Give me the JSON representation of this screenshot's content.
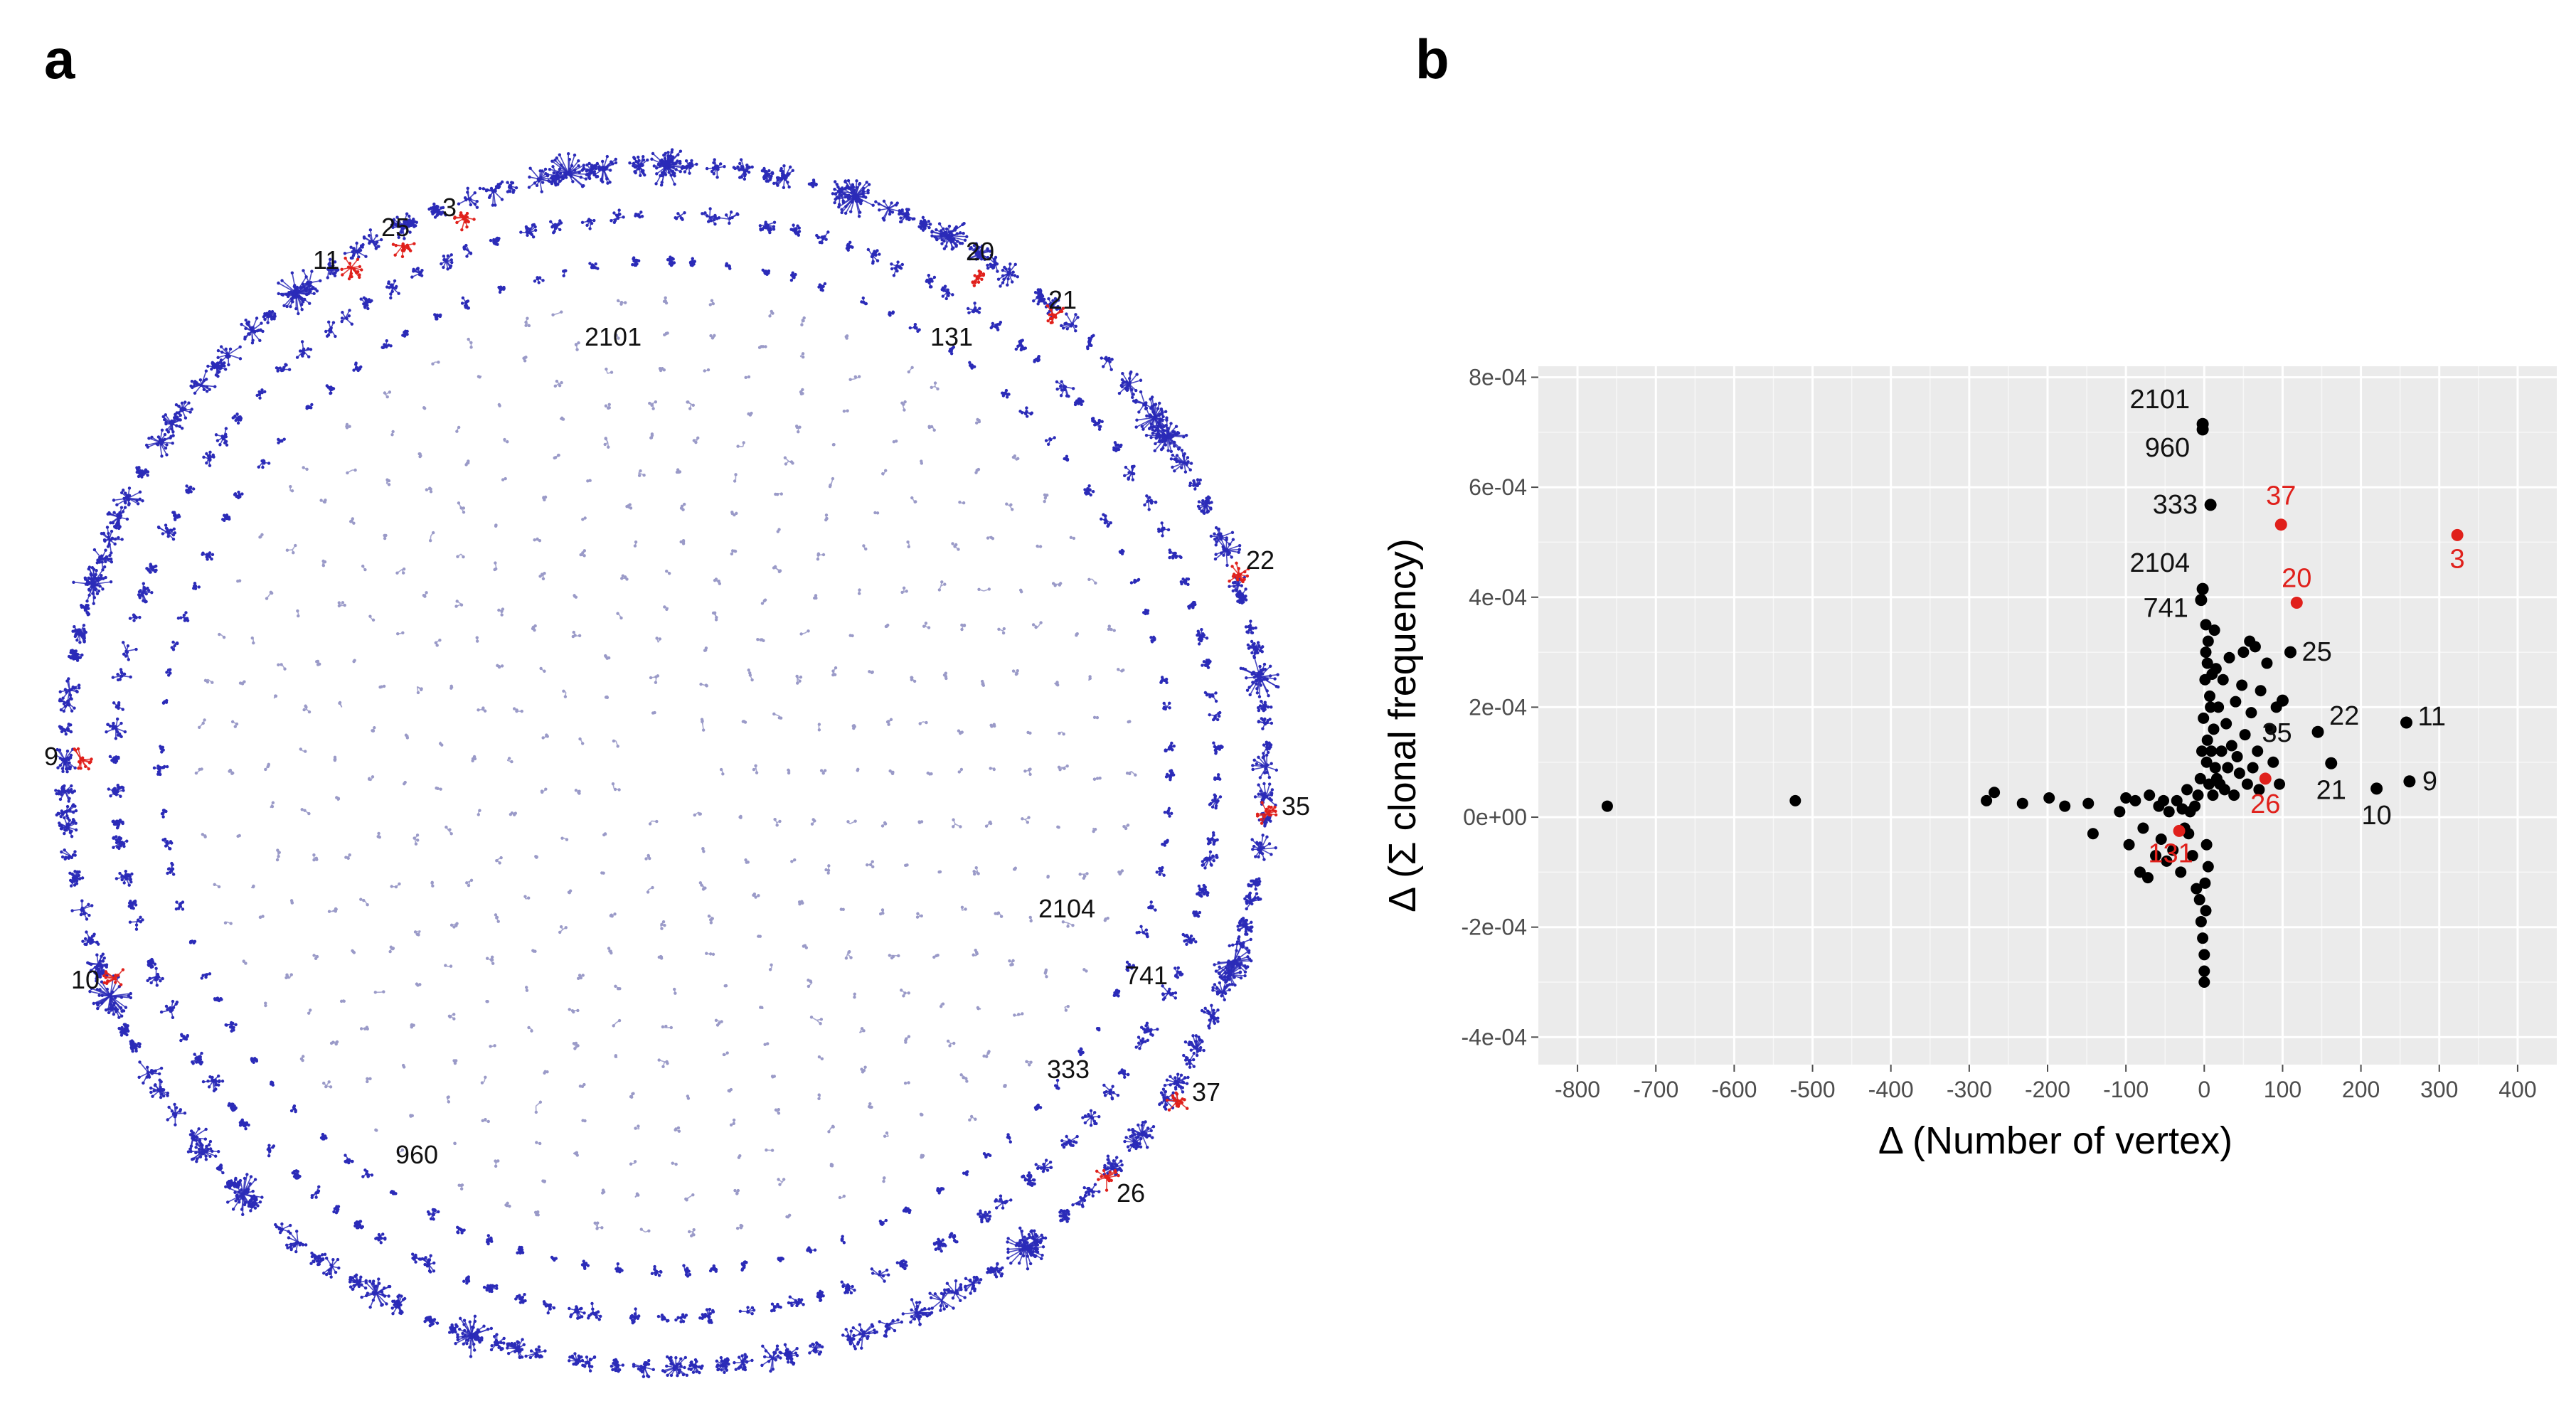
{
  "panels": {
    "a": "a",
    "b": "b"
  },
  "network": {
    "colors": {
      "cluster": "#2b2bb8",
      "highlight": "#e0201b",
      "faint": "#9a9ac8"
    },
    "outer_labels": [
      "3",
      "25",
      "11",
      "20",
      "21",
      "22",
      "9",
      "35",
      "10",
      "37",
      "26"
    ],
    "inner_labels": [
      "2101",
      "131",
      "2104",
      "741",
      "333",
      "960"
    ]
  },
  "chart_data": {
    "type": "scatter",
    "title": "",
    "xlabel": "Δ (Number of vertex)",
    "ylabel": "Δ (Σ clonal frequency)",
    "xlim": [
      -850,
      450
    ],
    "ylim": [
      -0.00045,
      0.00082
    ],
    "x_ticks": [
      -800,
      -700,
      -600,
      -500,
      -400,
      -300,
      -200,
      -100,
      0,
      100,
      200,
      300,
      400
    ],
    "x_tick_labels": [
      "-800",
      "-700",
      "-600",
      "-500",
      "-400",
      "-300",
      "-200",
      "-100",
      "0",
      "100",
      "200",
      "300",
      "400"
    ],
    "y_ticks": [
      -0.0004,
      -0.0002,
      0,
      0.0002,
      0.0004,
      0.0006,
      0.0008
    ],
    "y_tick_labels": [
      "-4e-04",
      "-2e-04",
      "0e+00",
      "2e-04",
      "4e-04",
      "6e-04",
      "8e-04"
    ],
    "grid": true,
    "colors": {
      "default": "#000000",
      "highlight": "#e0201b",
      "panel_bg": "#ebebeb",
      "grid": "#ffffff"
    },
    "labeled_points": [
      {
        "label": "2101",
        "x": -2,
        "y": 0.000715,
        "color": "black",
        "dx": -18,
        "dy": -22,
        "anchor": "end"
      },
      {
        "label": "960",
        "x": -2,
        "y": 0.000705,
        "color": "black",
        "dx": -18,
        "dy": 38,
        "anchor": "end"
      },
      {
        "label": "333",
        "x": 8,
        "y": 0.000568,
        "color": "black",
        "dx": -18,
        "dy": 12,
        "anchor": "end"
      },
      {
        "label": "37",
        "x": 98,
        "y": 0.000532,
        "color": "red",
        "dx": 0,
        "dy": -28,
        "anchor": "middle"
      },
      {
        "label": "3",
        "x": 323,
        "y": 0.000513,
        "color": "red",
        "dx": 0,
        "dy": 46,
        "anchor": "middle"
      },
      {
        "label": "2104",
        "x": -2,
        "y": 0.000415,
        "color": "black",
        "dx": -18,
        "dy": -24,
        "anchor": "end"
      },
      {
        "label": "741",
        "x": -4,
        "y": 0.000395,
        "color": "black",
        "dx": -18,
        "dy": 24,
        "anchor": "end"
      },
      {
        "label": "20",
        "x": 118,
        "y": 0.00039,
        "color": "red",
        "dx": 0,
        "dy": -22,
        "anchor": "middle"
      },
      {
        "label": "25",
        "x": 110,
        "y": 0.0003,
        "color": "black",
        "dx": 16,
        "dy": 12,
        "anchor": "start"
      },
      {
        "label": "11",
        "x": 258,
        "y": 0.000172,
        "color": "black",
        "dx": 16,
        "dy": 4,
        "anchor": "start"
      },
      {
        "label": "22",
        "x": 145,
        "y": 0.000155,
        "color": "black",
        "dx": 16,
        "dy": -10,
        "anchor": "start"
      },
      {
        "label": "35",
        "x": 100,
        "y": 0.000212,
        "color": "black",
        "dx": -8,
        "dy": 58,
        "anchor": "middle"
      },
      {
        "label": "21",
        "x": 162,
        "y": 9.8e-05,
        "color": "black",
        "dx": 0,
        "dy": 50,
        "anchor": "middle"
      },
      {
        "label": "9",
        "x": 262,
        "y": 6.5e-05,
        "color": "black",
        "dx": 18,
        "dy": 12,
        "anchor": "start"
      },
      {
        "label": "10",
        "x": 220,
        "y": 5.2e-05,
        "color": "black",
        "dx": 0,
        "dy": 50,
        "anchor": "middle"
      },
      {
        "label": "26",
        "x": 78,
        "y": 7e-05,
        "color": "red",
        "dx": 0,
        "dy": 48,
        "anchor": "middle"
      },
      {
        "label": "131",
        "x": -32,
        "y": -2.5e-05,
        "color": "red",
        "dx": -12,
        "dy": 44,
        "anchor": "middle"
      }
    ],
    "unlabeled_points": [
      [
        -762,
        2e-05
      ],
      [
        -522,
        3e-05
      ],
      [
        -278,
        3e-05
      ],
      [
        -268,
        4.5e-05
      ],
      [
        -232,
        2.5e-05
      ],
      [
        -198,
        3.5e-05
      ],
      [
        -178,
        2e-05
      ],
      [
        -148,
        2.5e-05
      ],
      [
        -142,
        -3e-05
      ],
      [
        -108,
        1e-05
      ],
      [
        -100,
        3.5e-05
      ],
      [
        -96,
        -5e-05
      ],
      [
        -88,
        3e-05
      ],
      [
        -82,
        -0.0001
      ],
      [
        -78,
        -2e-05
      ],
      [
        -72,
        -0.00011
      ],
      [
        -70,
        4e-05
      ],
      [
        -62,
        -7e-05
      ],
      [
        -58,
        2e-05
      ],
      [
        -55,
        -4e-05
      ],
      [
        -52,
        3e-05
      ],
      [
        -48,
        -8e-05
      ],
      [
        -45,
        1e-05
      ],
      [
        -40,
        -6e-05
      ],
      [
        -35,
        3e-05
      ],
      [
        -30,
        -0.0001
      ],
      [
        -28,
        1.5e-05
      ],
      [
        -25,
        -2e-05
      ],
      [
        -22,
        5e-05
      ],
      [
        -20,
        -3e-05
      ],
      [
        -18,
        1e-05
      ],
      [
        -15,
        -7e-05
      ],
      [
        -12,
        2e-05
      ],
      [
        -10,
        -0.00013
      ],
      [
        -8,
        4e-05
      ],
      [
        -6,
        -0.00015
      ],
      [
        -5,
        7e-05
      ],
      [
        -4,
        -0.00019
      ],
      [
        -3,
        0.00012
      ],
      [
        -2,
        -0.00022
      ],
      [
        -1,
        0.00018
      ],
      [
        0,
        -0.00025
      ],
      [
        0,
        -0.00028
      ],
      [
        0,
        -0.0003
      ],
      [
        1,
        0.00025
      ],
      [
        1,
        -0.00012
      ],
      [
        2,
        0.0003
      ],
      [
        2,
        0.00035
      ],
      [
        2,
        -0.00017
      ],
      [
        3,
        0.0001
      ],
      [
        3,
        -5e-05
      ],
      [
        4,
        0.00014
      ],
      [
        4,
        0.00028
      ],
      [
        5,
        0.00032
      ],
      [
        5,
        -9e-05
      ],
      [
        6,
        6e-05
      ],
      [
        7,
        0.00022
      ],
      [
        8,
        0.0002
      ],
      [
        9,
        0.00012
      ],
      [
        10,
        0.00026
      ],
      [
        11,
        4e-05
      ],
      [
        12,
        0.00016
      ],
      [
        13,
        0.00034
      ],
      [
        14,
        9e-05
      ],
      [
        15,
        0.00027
      ],
      [
        16,
        7e-05
      ],
      [
        18,
        0.0002
      ],
      [
        20,
        6e-05
      ],
      [
        22,
        0.00012
      ],
      [
        24,
        0.00025
      ],
      [
        26,
        5e-05
      ],
      [
        28,
        0.00017
      ],
      [
        30,
        9e-05
      ],
      [
        32,
        0.00029
      ],
      [
        35,
        0.00013
      ],
      [
        38,
        4e-05
      ],
      [
        40,
        0.00021
      ],
      [
        42,
        0.00011
      ],
      [
        45,
        8e-05
      ],
      [
        48,
        0.00024
      ],
      [
        50,
        0.0003
      ],
      [
        52,
        0.00015
      ],
      [
        55,
        6e-05
      ],
      [
        58,
        0.00032
      ],
      [
        60,
        0.00019
      ],
      [
        62,
        9e-05
      ],
      [
        65,
        0.00031
      ],
      [
        68,
        0.00012
      ],
      [
        70,
        5e-05
      ],
      [
        72,
        0.00023
      ],
      [
        80,
        0.00028
      ],
      [
        85,
        0.00016
      ],
      [
        88,
        0.0001
      ],
      [
        92,
        0.0002
      ],
      [
        96,
        6e-05
      ]
    ]
  }
}
